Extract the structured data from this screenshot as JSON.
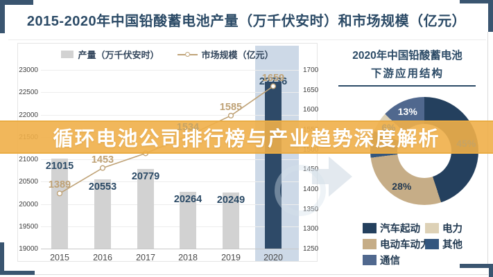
{
  "frame": {
    "corner_color": "#3a5570",
    "background": "#ffffff"
  },
  "header": {
    "title": "2015-2020年中国铅酸蓄电池产量（万千伏安时）和市场规模（亿元）",
    "text_color": "#2b4a66"
  },
  "overlay_banner": {
    "text": "循环电池公司排行榜与产业趋势深度解析",
    "bg_color": "#f0af4a",
    "text_color": "#ffffff"
  },
  "chart_data": [
    {
      "type": "bar",
      "title": "2015-2020年中国铅酸蓄电池产量（万千伏安时）和市场规模（亿元）",
      "categories": [
        "2015",
        "2016",
        "2017",
        "2018",
        "2019",
        "2020"
      ],
      "series": [
        {
          "name": "产量（万千伏安时）",
          "type": "bar",
          "axis": "left",
          "values": [
            21015,
            20553,
            20779,
            20264,
            20249,
            22736
          ],
          "bar_color": "#d2d2d2",
          "highlight_color": "#2e4a68",
          "highlight_index": 5
        },
        {
          "name": "市场规模（亿元）",
          "type": "line",
          "axis": "right",
          "values": [
            1389,
            1453,
            1490,
            1534,
            1585,
            1659
          ],
          "labels_shown": [
            true,
            true,
            false,
            true,
            true,
            true
          ],
          "line_color": "#bfa276"
        }
      ],
      "left_axis": {
        "min": 19000,
        "max": 23000,
        "step": 500,
        "ticks": [
          23000,
          22500,
          22000,
          21500,
          21000,
          20500,
          20000,
          19500,
          19000
        ]
      },
      "right_axis": {
        "min": 1250,
        "max": 1700,
        "step": 50,
        "ticks": [
          1700,
          1650,
          1600,
          1550,
          1500,
          1450,
          1400,
          1350,
          1300,
          1250
        ]
      },
      "highlight_band_color": "#cdd9e7",
      "legend_position": "top",
      "grid": true
    },
    {
      "type": "pie",
      "donut": true,
      "title": "2020年中国铅酸蓄电池下游应用结构",
      "slices": [
        {
          "label": "汽车起动",
          "value": 45,
          "color": "#24405e",
          "pct_label": "45%",
          "label_shown": true
        },
        {
          "label": "电动车动力",
          "value": 28,
          "color": "#c6ad87",
          "pct_label": "28%",
          "label_shown": true
        },
        {
          "label": "其他",
          "value": 8,
          "color": "#33567e",
          "pct_label": "8%",
          "label_shown": false
        },
        {
          "label": "电力",
          "value": 6,
          "color": "#ddd1b6",
          "pct_label": "6%",
          "label_shown": true
        },
        {
          "label": "通信",
          "value": 13,
          "color": "#50688e",
          "pct_label": "13%",
          "label_shown": true
        }
      ]
    }
  ],
  "right_panel": {
    "title_line1": "2020年中国铅酸蓄电池",
    "title_line2": "下游应用结构",
    "legend": [
      {
        "label": "汽车起动",
        "color": "#24405e"
      },
      {
        "label": "电力",
        "color": "#ddd1b6"
      },
      {
        "label": "电动车动力",
        "color": "#c6ad87"
      },
      {
        "label": "其他",
        "color": "#33567e"
      },
      {
        "label": "通信",
        "color": "#50688e"
      }
    ]
  }
}
